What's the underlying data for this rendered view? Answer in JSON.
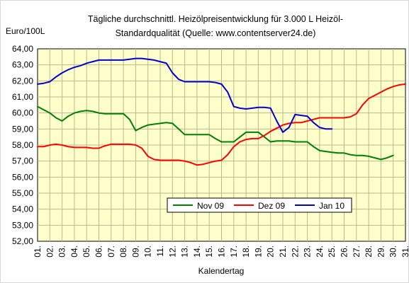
{
  "chart_data": {
    "type": "line",
    "title_line1": "Tägliche durchschnittl. Heizölpreisentwicklung für 3.000 L Heizöl-",
    "title_line2": "Standardqualität (Quelle: www.contentserver24.de)",
    "ylabel": "Euro/100L",
    "xlabel": "Kalendertag",
    "ylim": [
      52,
      64
    ],
    "grid": true,
    "legend_position": "bottom-right",
    "plot_bg": "#ffffcc",
    "grid_color": "#b9b98a",
    "categories": [
      "01.",
      "02.",
      "03.",
      "04.",
      "05.",
      "06.",
      "07.",
      "08.",
      "09.",
      "10.",
      "11.",
      "12.",
      "13.",
      "14.",
      "15.",
      "16.",
      "17.",
      "18.",
      "19.",
      "20.",
      "21.",
      "22.",
      "23.",
      "24.",
      "25.",
      "26.",
      "27.",
      "28.",
      "29.",
      "30.",
      "31."
    ],
    "yticks": [
      "52,00",
      "53,00",
      "54,00",
      "55,00",
      "56,00",
      "57,00",
      "58,00",
      "59,00",
      "60,00",
      "61,00",
      "62,00",
      "63,00",
      "64,00"
    ],
    "series": [
      {
        "name": "Nov 09",
        "color": "#008000",
        "x": [
          1,
          1.5,
          2,
          2.5,
          3,
          3.5,
          4,
          4.5,
          5,
          5.5,
          6,
          6.5,
          7,
          7.5,
          8,
          8.5,
          9,
          9.5,
          10,
          10.5,
          11,
          11.5,
          12,
          12.5,
          13,
          13.5,
          14,
          14.5,
          15,
          15.5,
          16,
          16.5,
          17,
          17.5,
          18,
          18.5,
          19,
          19.5,
          20,
          20.5,
          21,
          21.5,
          22,
          22.5,
          23,
          23.5,
          24,
          24.5,
          25,
          25.5,
          26,
          26.5,
          27,
          27.5,
          28,
          28.5,
          29,
          29.5,
          30
        ],
        "values": [
          60.4,
          60.2,
          60.0,
          59.7,
          59.5,
          59.8,
          60.0,
          60.1,
          60.15,
          60.1,
          60.0,
          59.95,
          59.95,
          59.95,
          59.95,
          59.6,
          58.9,
          59.1,
          59.25,
          59.3,
          59.35,
          59.4,
          59.35,
          59.0,
          58.65,
          58.65,
          58.65,
          58.65,
          58.65,
          58.4,
          58.2,
          58.2,
          58.2,
          58.5,
          58.8,
          58.8,
          58.8,
          58.5,
          58.2,
          58.25,
          58.25,
          58.25,
          58.2,
          58.2,
          58.2,
          57.9,
          57.65,
          57.6,
          57.55,
          57.5,
          57.5,
          57.4,
          57.35,
          57.35,
          57.3,
          57.2,
          57.1,
          57.2,
          57.35
        ]
      },
      {
        "name": "Dez 09",
        "color": "#ff0000",
        "x": [
          1,
          1.5,
          2,
          2.5,
          3,
          3.5,
          4,
          4.5,
          5,
          5.5,
          6,
          6.5,
          7,
          7.5,
          8,
          8.5,
          9,
          9.5,
          10,
          10.5,
          11,
          11.5,
          12,
          12.5,
          13,
          13.5,
          14,
          14.5,
          15,
          15.5,
          16,
          16.5,
          17,
          17.5,
          18,
          18.5,
          19,
          19.5,
          20,
          20.5,
          21,
          21.5,
          22,
          22.5,
          23,
          23.5,
          24,
          24.5,
          25,
          25.5,
          26,
          26.5,
          27,
          27.5,
          28,
          28.5,
          29,
          29.5,
          30,
          30.5,
          31
        ],
        "values": [
          57.9,
          57.9,
          58.0,
          58.05,
          58.0,
          57.9,
          57.85,
          57.85,
          57.85,
          57.8,
          57.8,
          57.95,
          58.05,
          58.05,
          58.05,
          58.05,
          58.0,
          57.8,
          57.3,
          57.1,
          57.05,
          57.05,
          57.05,
          57.05,
          57.0,
          56.9,
          56.75,
          56.8,
          56.9,
          57.0,
          57.05,
          57.4,
          57.9,
          58.2,
          58.35,
          58.4,
          58.4,
          58.6,
          58.85,
          59.05,
          59.25,
          59.35,
          59.4,
          59.4,
          59.5,
          59.6,
          59.7,
          59.7,
          59.7,
          59.7,
          59.7,
          59.75,
          59.95,
          60.5,
          60.9,
          61.1,
          61.3,
          61.5,
          61.65,
          61.75,
          61.8
        ]
      },
      {
        "name": "Jan 10",
        "color": "#0000cc",
        "x": [
          1,
          1.5,
          2,
          2.5,
          3,
          3.5,
          4,
          4.5,
          5,
          5.5,
          6,
          6.5,
          7,
          7.5,
          8,
          8.5,
          9,
          9.5,
          10,
          10.5,
          11,
          11.5,
          12,
          12.5,
          13,
          13.5,
          14,
          14.5,
          15,
          15.5,
          16,
          16.5,
          17,
          17.5,
          18,
          18.5,
          19,
          19.5,
          20,
          20.5,
          21,
          21.5,
          22,
          22.5,
          23,
          23.5,
          24,
          24.5,
          25
        ],
        "values": [
          61.8,
          61.85,
          61.95,
          62.25,
          62.5,
          62.7,
          62.85,
          62.95,
          63.1,
          63.2,
          63.3,
          63.3,
          63.3,
          63.3,
          63.3,
          63.35,
          63.4,
          63.4,
          63.35,
          63.3,
          63.2,
          63.1,
          62.5,
          62.1,
          61.95,
          61.95,
          61.95,
          61.95,
          61.95,
          61.9,
          61.8,
          61.3,
          60.4,
          60.3,
          60.25,
          60.3,
          60.35,
          60.35,
          60.3,
          59.5,
          58.8,
          59.1,
          59.9,
          59.85,
          59.8,
          59.4,
          59.1,
          59.0,
          59.0
        ]
      }
    ]
  }
}
